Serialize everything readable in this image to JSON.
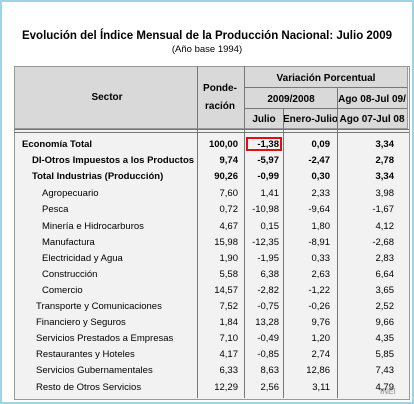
{
  "header": {
    "title": "Evolución del Índice Mensual de la Producción Nacional: Julio 2009",
    "subtitle": "(Año base 1994)"
  },
  "table": {
    "columns": {
      "sector": "Sector",
      "weight": [
        "Ponde-",
        "ración"
      ],
      "variation": "Variación Porcentual",
      "year": "2009/2008",
      "period": [
        "Ago 08-Jul 09/",
        "Ago 07-Jul 08"
      ],
      "month": "Julio",
      "ytd": "Enero-Julio"
    },
    "rows": [
      [
        "Economía Total",
        "100,00",
        "-1,38",
        "0,09",
        "3,34"
      ],
      [
        "DI-Otros Impuestos a los Productos",
        "9,74",
        "-5,97",
        "-2,47",
        "2,78"
      ],
      [
        "Total  Industrias (Producción)",
        "90,26",
        "-0,99",
        "0,30",
        "3,34"
      ],
      [
        "Agropecuario",
        "7,60",
        "1,41",
        "2,33",
        "3,98"
      ],
      [
        "Pesca",
        "0,72",
        "-10,98",
        "-9,64",
        "-1,67"
      ],
      [
        "Minería e Hidrocarburos",
        "4,67",
        "0,15",
        "1,80",
        "4,12"
      ],
      [
        "Manufactura",
        "15,98",
        "-12,35",
        "-8,91",
        "-2,68"
      ],
      [
        "Electricidad y Agua",
        "1,90",
        "-1,95",
        "0,33",
        "2,83"
      ],
      [
        "Construcción",
        "5,58",
        "6,38",
        "2,63",
        "6,64"
      ],
      [
        "Comercio",
        "14,57",
        "-2,82",
        "-1,22",
        "3,65"
      ],
      [
        "Transporte y Comunicaciones",
        "7,52",
        "-0,75",
        "-0,26",
        "2,52"
      ],
      [
        "Financiero y Seguros",
        "1,84",
        "13,28",
        "9,76",
        "9,66"
      ],
      [
        "Servicios Prestados a Empresas",
        "7,10",
        "-0,49",
        "1,20",
        "4,35"
      ],
      [
        "Restaurantes y Hoteles",
        "4,17",
        "-0,85",
        "2,74",
        "5,85"
      ],
      [
        "Servicios Gubernamentales",
        "6,33",
        "8,63",
        "12,86",
        "7,43"
      ],
      [
        "Resto de Otros Servicios",
        "12,29",
        "2,56",
        "3,11",
        "4,79"
      ]
    ]
  },
  "footer": {
    "source": "INEI"
  }
}
